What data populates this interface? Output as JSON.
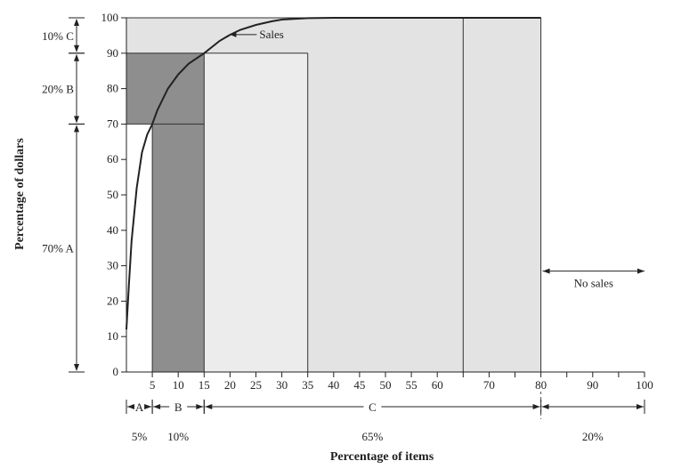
{
  "chart_data": {
    "type": "area",
    "xlabel": "Percentage of items",
    "ylabel": "Percentage of dollars",
    "xlim": [
      0,
      100
    ],
    "ylim": [
      0,
      100
    ],
    "x_tick_labels": [
      "5",
      "10",
      "15",
      "20",
      "25",
      "30",
      "35",
      "40",
      "45",
      "50",
      "55",
      "60",
      "70",
      "80",
      "90",
      "100"
    ],
    "x_tick_values": [
      5,
      10,
      15,
      20,
      25,
      30,
      35,
      40,
      45,
      50,
      55,
      60,
      70,
      80,
      90,
      100
    ],
    "y_tick_labels": [
      "0",
      "10",
      "20",
      "30",
      "40",
      "50",
      "60",
      "70",
      "80",
      "90",
      "100"
    ],
    "series": [
      {
        "name": "Sales",
        "x": [
          0,
          0.5,
          1,
          2,
          3,
          4,
          5,
          6,
          8,
          10,
          12,
          15,
          18,
          20,
          22,
          25,
          28,
          30,
          35,
          40,
          50,
          60,
          80
        ],
        "y": [
          12,
          25,
          37,
          52,
          62,
          67,
          70,
          74,
          80,
          84,
          87,
          90,
          93.5,
          95.2,
          96.6,
          98,
          99,
          99.5,
          99.9,
          100,
          100,
          100,
          100
        ]
      }
    ],
    "regions": [
      {
        "class": "A",
        "x": [
          0,
          5
        ],
        "y": [
          0,
          70
        ],
        "tone": "dark"
      },
      {
        "class": "B",
        "x": [
          5,
          15
        ],
        "y": [
          0,
          90
        ],
        "tone": "medium"
      },
      {
        "class": "C",
        "x": [
          15,
          80
        ],
        "y": [
          0,
          100
        ],
        "tone": "light"
      }
    ],
    "y_annotations": [
      {
        "label": "10% C",
        "from": 90,
        "to": 100
      },
      {
        "label": "20% B",
        "from": 70,
        "to": 90
      },
      {
        "label": "70% A",
        "from": 0,
        "to": 70
      }
    ],
    "x_annotations": [
      {
        "label": "A",
        "percent": "5%",
        "from": 0,
        "to": 5
      },
      {
        "label": "B",
        "percent": "10%",
        "from": 5,
        "to": 15
      },
      {
        "label": "C",
        "percent": "65%",
        "from": 15,
        "to": 80
      },
      {
        "label": "",
        "percent": "20%",
        "from": 80,
        "to": 100
      }
    ],
    "annotations": {
      "sales_label": "Sales",
      "no_sales_label": "No sales"
    },
    "colors": {
      "class_a": "#8e8e8e",
      "class_b": "#c2c2c2",
      "class_c": "#e3e3e3",
      "line": "#222222"
    }
  }
}
